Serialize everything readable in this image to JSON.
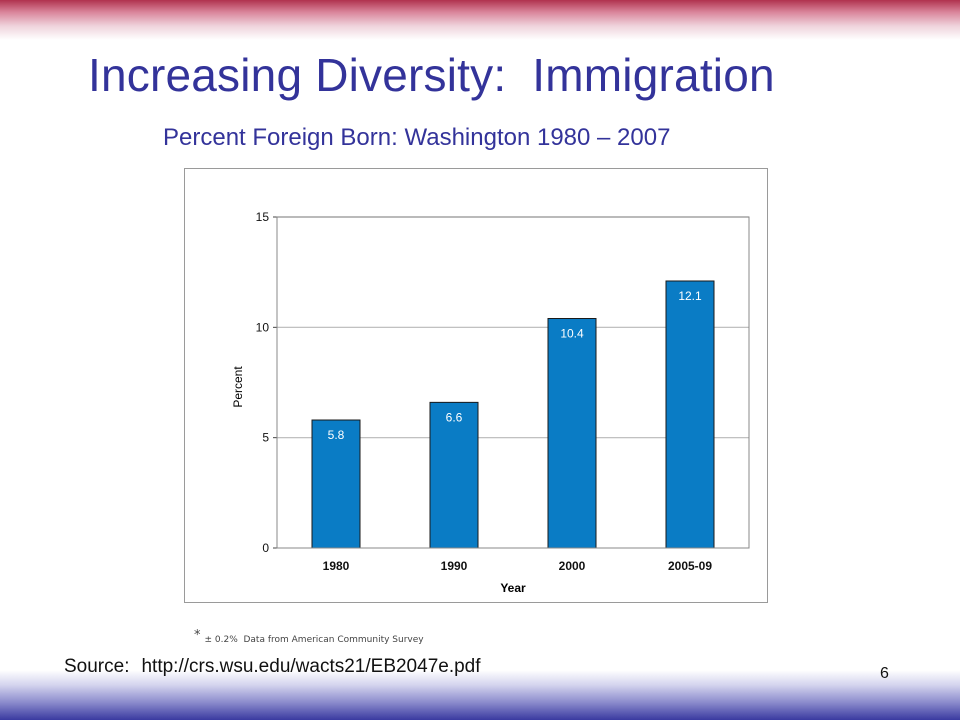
{
  "slide": {
    "title": "Increasing Diversity:  Immigration",
    "subtitle": "Percent Foreign Born: Washington 1980 – 2007",
    "footnote_mark": "*",
    "footnote": "± 0.2%  Data from American Community Survey",
    "source_label": "Source:",
    "source_url": "http://crs.wsu.edu/wacts21/EB2047e.pdf",
    "page_number": "6"
  },
  "colors": {
    "title": "#33339a",
    "bar": "#0a7cc5",
    "bar_outline": "#1a1a1a",
    "gridline": "#b8b8b8",
    "top_band": "#b0324e",
    "bottom_band": "#3a3aa0"
  },
  "chart_data": {
    "type": "bar",
    "categories": [
      "1980",
      "1990",
      "2000",
      "2005-09"
    ],
    "values": [
      5.8,
      6.6,
      10.4,
      12.1
    ],
    "data_labels": [
      "5.8",
      "6.6",
      "10.4",
      "12.1"
    ],
    "xlabel": "Year",
    "ylabel": "Percent",
    "ylim": [
      0,
      15
    ],
    "yticks": [
      0,
      5,
      10,
      15
    ],
    "grid": true,
    "legend": "none"
  }
}
